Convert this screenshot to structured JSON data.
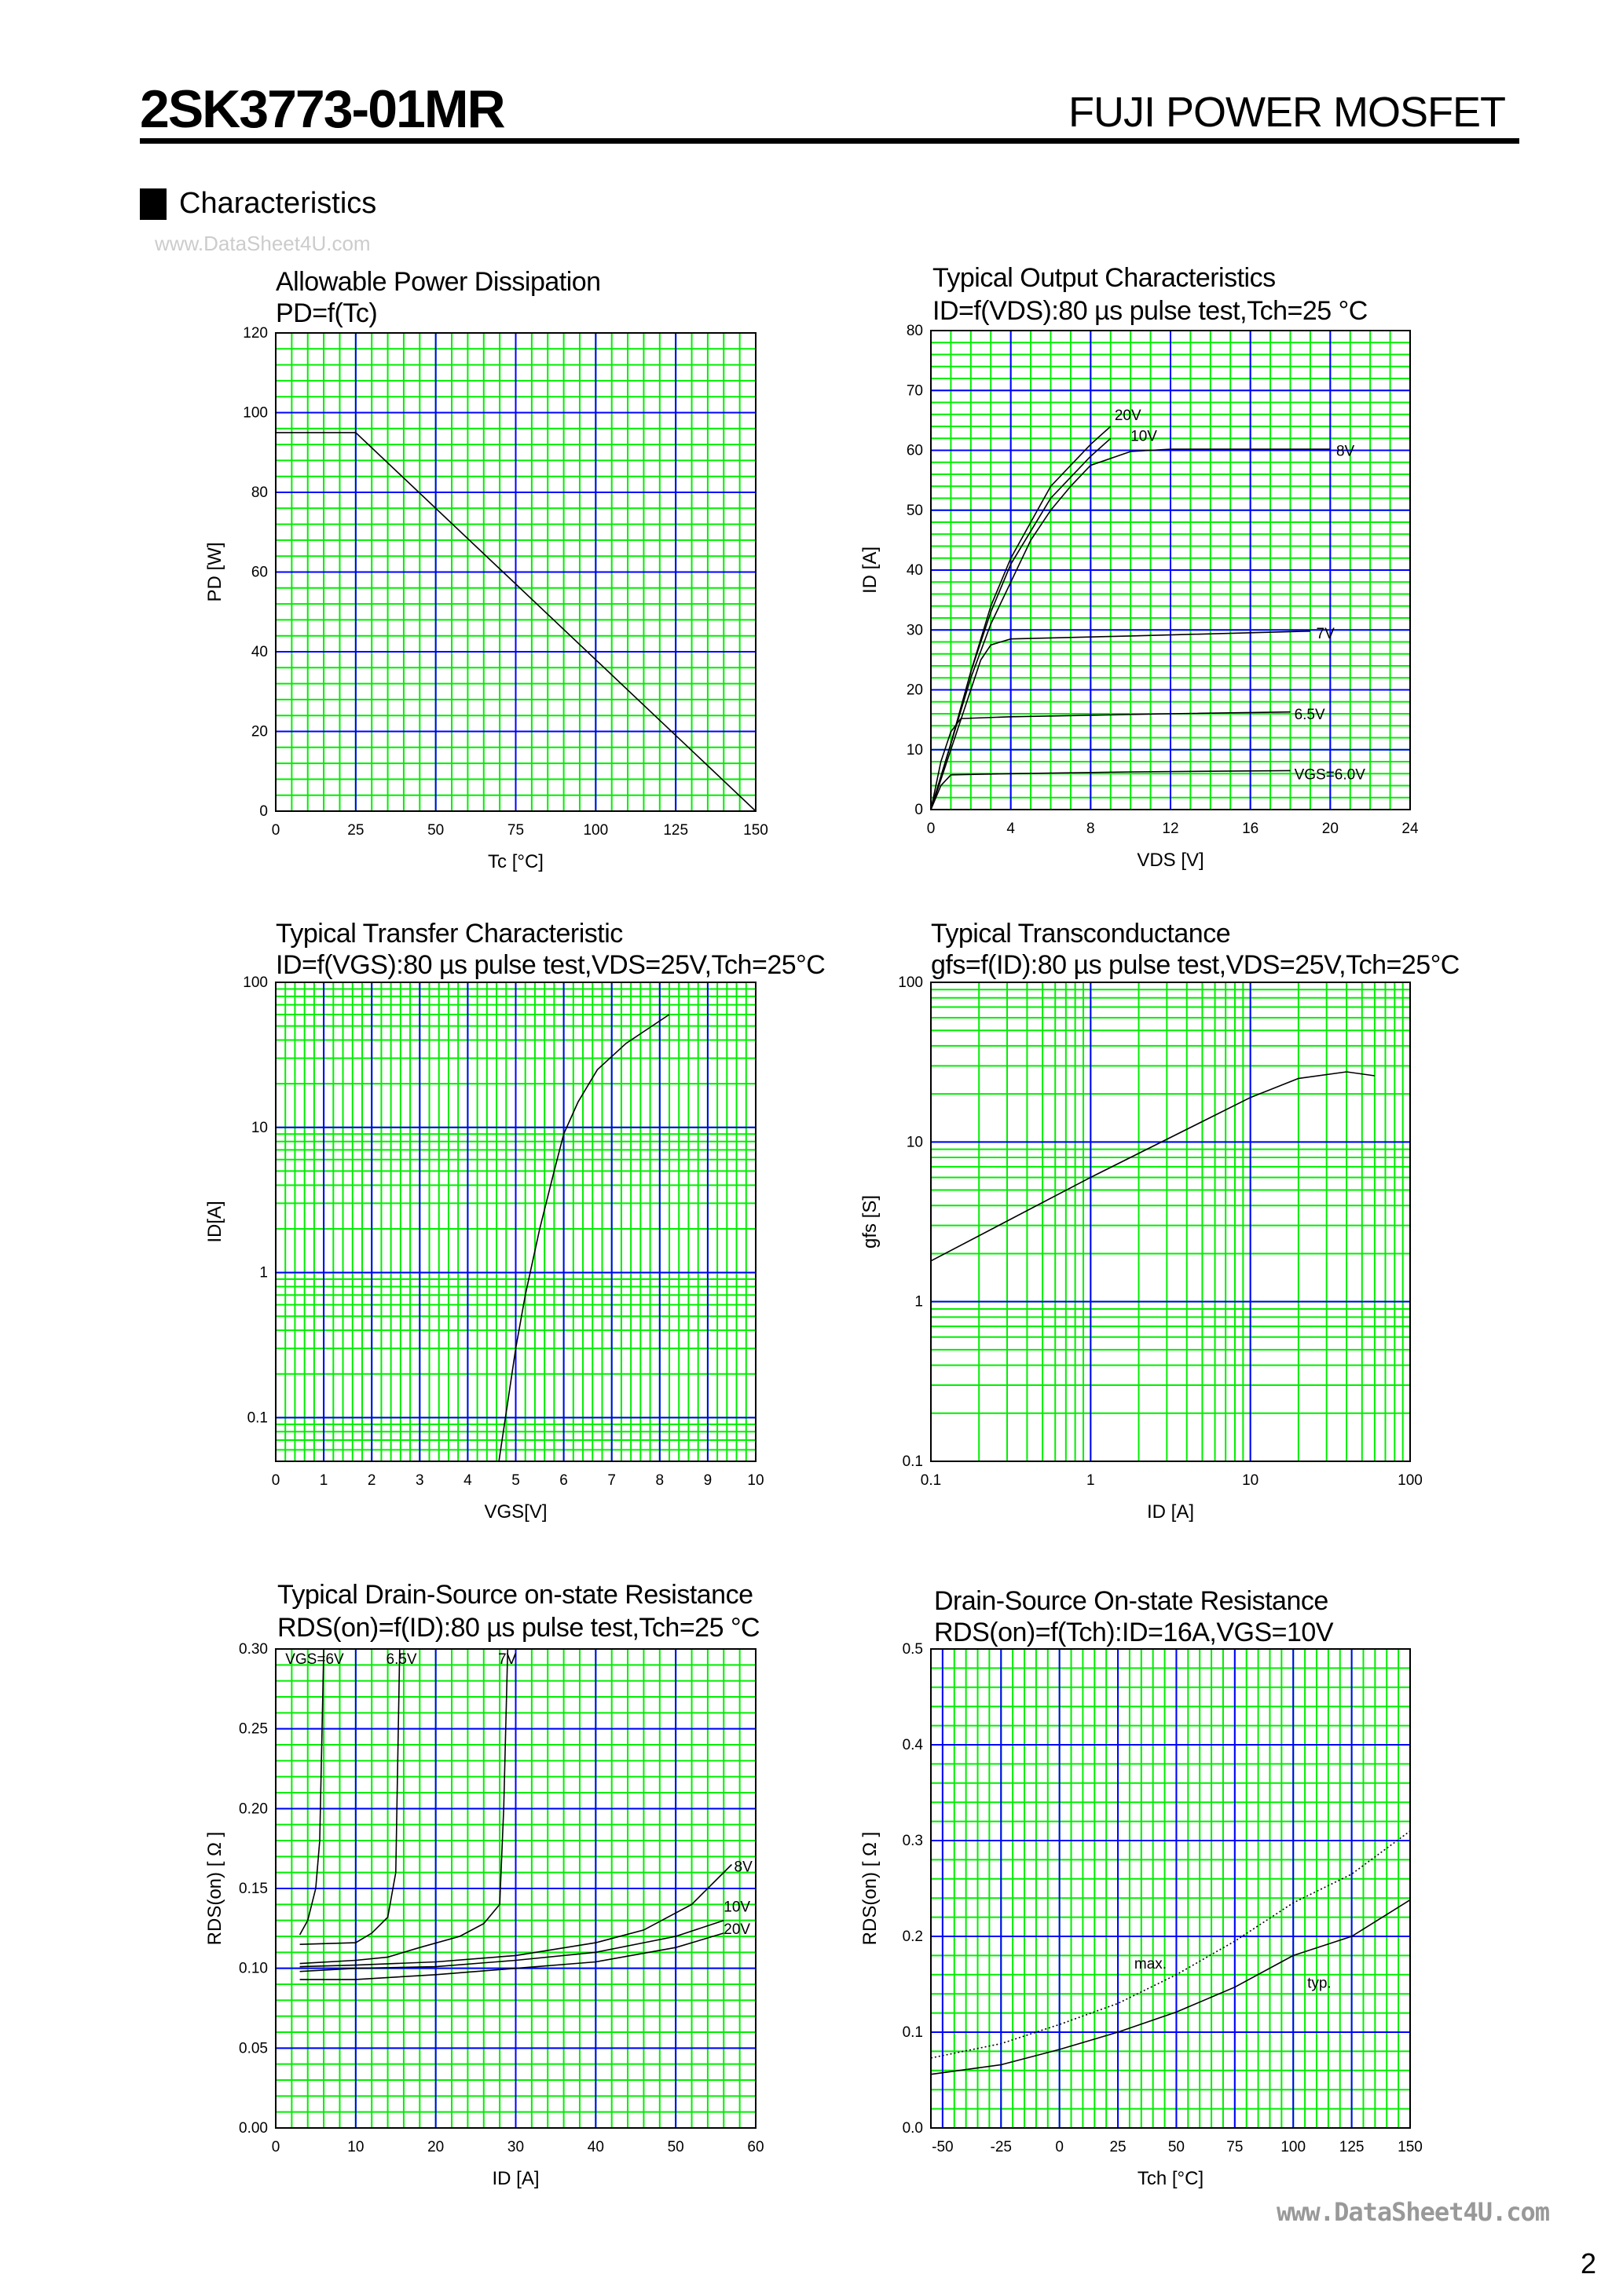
{
  "header": {
    "part_number": "2SK3773-01MR",
    "maker": "FUJI POWER MOSFET",
    "section": "Characteristics",
    "watermark_top": "www.DataSheet4U.com",
    "watermark_bottom": "www.DataSheet4U.com",
    "page_number": "2"
  },
  "colors": {
    "minor_grid": "#00ee00",
    "major_grid": "#0000ff",
    "curve": "#000000"
  },
  "chart_data": [
    {
      "type": "line",
      "title": "Allowable Power Dissipation",
      "subtitle": "PD=f(Tc)",
      "xlabel": "Tc [°C]",
      "ylabel": "PD [W]",
      "xscale": "linear",
      "yscale": "linear",
      "xlim": [
        0,
        150
      ],
      "ylim": [
        0,
        120
      ],
      "xticks": [
        0,
        25,
        50,
        75,
        100,
        125,
        150
      ],
      "yticks": [
        0,
        20,
        40,
        60,
        80,
        100,
        120
      ],
      "xminor": 5,
      "yminor": 4,
      "grid": true,
      "series": [
        {
          "x": [
            0,
            25,
            150
          ],
          "y": [
            95,
            95,
            0
          ]
        }
      ],
      "annotations": []
    },
    {
      "type": "line",
      "title": "Typical Output Characteristics",
      "subtitle": "ID=f(VDS):80 µs pulse test,Tch=25 °C",
      "xlabel": "VDS [V]",
      "ylabel": "ID [A]",
      "xscale": "linear",
      "yscale": "linear",
      "xlim": [
        0,
        24
      ],
      "ylim": [
        0,
        80
      ],
      "xticks": [
        0,
        4,
        8,
        12,
        16,
        20,
        24
      ],
      "yticks": [
        0,
        10,
        20,
        30,
        40,
        50,
        60,
        70,
        80
      ],
      "xminor": 1,
      "yminor": 2,
      "grid": true,
      "series": [
        {
          "name": "20V",
          "x": [
            0,
            1,
            2,
            3,
            4,
            6,
            8,
            9
          ],
          "y": [
            0,
            11,
            23,
            34,
            42,
            54,
            61,
            64
          ]
        },
        {
          "name": "10V",
          "x": [
            0,
            1,
            2,
            3,
            4,
            6,
            8,
            9
          ],
          "y": [
            0,
            11,
            23,
            33,
            41,
            52,
            59,
            62
          ]
        },
        {
          "name": "8V",
          "x": [
            0,
            1,
            2,
            3,
            4,
            5,
            6,
            7,
            8,
            10,
            12,
            20
          ],
          "y": [
            0,
            11,
            22,
            31,
            38,
            45,
            50,
            54,
            57.5,
            59.8,
            60.2,
            60.2
          ]
        },
        {
          "name": "7V",
          "x": [
            0,
            1,
            2,
            2.5,
            3,
            4,
            10,
            19
          ],
          "y": [
            0,
            10,
            20,
            25,
            27.5,
            28.5,
            29,
            29.8
          ]
        },
        {
          "name": "6.5V",
          "x": [
            0,
            0.5,
            1,
            1.5,
            4,
            12,
            18
          ],
          "y": [
            0,
            8,
            13,
            15.2,
            15.5,
            16,
            16.3
          ]
        },
        {
          "name": "VGS=6.0V",
          "x": [
            0,
            0.5,
            1,
            4,
            10,
            18
          ],
          "y": [
            0,
            4,
            5.8,
            6,
            6.3,
            6.5
          ]
        }
      ],
      "annotations": [
        {
          "text": "20V",
          "x": 9.2,
          "y": 66
        },
        {
          "text": "10V",
          "x": 10,
          "y": 62.5
        },
        {
          "text": "8V",
          "x": 20.3,
          "y": 60
        },
        {
          "text": "7V",
          "x": 19.3,
          "y": 29.5
        },
        {
          "text": "6.5V",
          "x": 18.2,
          "y": 16
        },
        {
          "text": "VGS=6.0V",
          "x": 18.2,
          "y": 6
        }
      ]
    },
    {
      "type": "line",
      "title": "Typical Transfer Characteristic",
      "subtitle": "ID=f(VGS):80 µs pulse test,VDS=25V,Tch=25°C",
      "xlabel": "VGS[V]",
      "ylabel": "ID[A]",
      "xscale": "linear",
      "yscale": "log",
      "xlim": [
        0,
        10
      ],
      "ylim": [
        0.05,
        100
      ],
      "xticks": [
        0,
        1,
        2,
        3,
        4,
        5,
        6,
        7,
        8,
        9,
        10
      ],
      "yticks": [
        0.1,
        1,
        10,
        100
      ],
      "xminor": 0.2,
      "grid": true,
      "series": [
        {
          "x": [
            4.65,
            5,
            5.2,
            5.5,
            5.8,
            6,
            6.3,
            6.7,
            7.3,
            8.2
          ],
          "y": [
            0.05,
            0.3,
            0.7,
            2,
            5,
            9,
            15,
            25,
            38,
            60
          ]
        }
      ],
      "annotations": []
    },
    {
      "type": "line",
      "title": "Typical Transconductance",
      "subtitle": "gfs=f(ID):80 µs pulse test,VDS=25V,Tch=25°C",
      "xlabel": "ID [A]",
      "ylabel": "gfs [S]",
      "xscale": "log",
      "yscale": "log",
      "xlim": [
        0.1,
        100
      ],
      "ylim": [
        0.1,
        100
      ],
      "xticks": [
        0.1,
        1,
        10,
        100
      ],
      "yticks": [
        0.1,
        1,
        10,
        100
      ],
      "grid": true,
      "series": [
        {
          "x": [
            0.1,
            1,
            10,
            20,
            40,
            60
          ],
          "y": [
            1.8,
            6,
            19,
            25,
            27.5,
            26
          ]
        }
      ],
      "annotations": []
    },
    {
      "type": "line",
      "title": "Typical Drain-Source on-state Resistance",
      "subtitle": "RDS(on)=f(ID):80  µs pulse test,Tch=25  °C",
      "xlabel": "ID [A]",
      "ylabel": "RDS(on) [ Ω ]",
      "xscale": "linear",
      "yscale": "linear",
      "xlim": [
        0,
        60
      ],
      "ylim": [
        0,
        0.3
      ],
      "xticks": [
        0,
        10,
        20,
        30,
        40,
        50,
        60
      ],
      "yticks": [
        0.0,
        0.05,
        0.1,
        0.15,
        0.2,
        0.25,
        0.3
      ],
      "ytick_decimals": 2,
      "xminor": 2,
      "yminor": 0.01,
      "grid": true,
      "series": [
        {
          "name": "VGS=6V",
          "x": [
            3,
            4,
            5,
            5.5,
            6
          ],
          "y": [
            0.121,
            0.13,
            0.15,
            0.18,
            0.3
          ]
        },
        {
          "name": "6.5V",
          "x": [
            3,
            10,
            12,
            14,
            15,
            15.5
          ],
          "y": [
            0.115,
            0.116,
            0.122,
            0.132,
            0.16,
            0.3
          ]
        },
        {
          "name": "7V",
          "x": [
            3,
            10,
            14,
            18,
            23,
            26,
            28,
            28.5,
            29
          ],
          "y": [
            0.103,
            0.105,
            0.107,
            0.113,
            0.12,
            0.128,
            0.14,
            0.2,
            0.3
          ]
        },
        {
          "name": "8V",
          "x": [
            3,
            10,
            20,
            30,
            40,
            46,
            52,
            57
          ],
          "y": [
            0.101,
            0.102,
            0.104,
            0.108,
            0.116,
            0.124,
            0.14,
            0.165
          ]
        },
        {
          "name": "10V",
          "x": [
            3,
            10,
            20,
            30,
            40,
            50,
            56
          ],
          "y": [
            0.098,
            0.1,
            0.101,
            0.105,
            0.11,
            0.12,
            0.13
          ]
        },
        {
          "name": "20V",
          "x": [
            3,
            10,
            20,
            30,
            40,
            50,
            56
          ],
          "y": [
            0.093,
            0.093,
            0.096,
            0.1,
            0.104,
            0.113,
            0.122
          ]
        }
      ],
      "annotations": [
        {
          "text": "VGS=6V",
          "x": 1.2,
          "y": 0.294
        },
        {
          "text": "6.5V",
          "x": 13.8,
          "y": 0.294
        },
        {
          "text": "7V",
          "x": 27.8,
          "y": 0.294
        },
        {
          "text": "8V",
          "x": 57.3,
          "y": 0.164
        },
        {
          "text": "10V",
          "x": 56,
          "y": 0.139
        },
        {
          "text": "20V",
          "x": 56,
          "y": 0.125
        }
      ]
    },
    {
      "type": "line",
      "title": "Drain-Source On-state Resistance",
      "subtitle": "RDS(on)=f(Tch):ID=16A,VGS=10V",
      "xlabel": "Tch [°C]",
      "ylabel": "RDS(on) [ Ω ]",
      "xscale": "linear",
      "yscale": "linear",
      "xlim": [
        -55,
        150
      ],
      "ylim": [
        0,
        0.5
      ],
      "xticks": [
        -50,
        -25,
        0,
        25,
        50,
        75,
        100,
        125,
        150
      ],
      "yticks": [
        0.0,
        0.1,
        0.2,
        0.3,
        0.4,
        0.5
      ],
      "ytick_decimals": 1,
      "xminor": 5,
      "yminor": 0.02,
      "grid": true,
      "series": [
        {
          "name": "max.",
          "dashed": true,
          "x": [
            -55,
            -25,
            0,
            25,
            50,
            75,
            100,
            125,
            150
          ],
          "y": [
            0.073,
            0.088,
            0.108,
            0.13,
            0.16,
            0.195,
            0.235,
            0.265,
            0.31
          ]
        },
        {
          "name": "typ.",
          "x": [
            -55,
            -25,
            0,
            25,
            50,
            75,
            100,
            125,
            150
          ],
          "y": [
            0.056,
            0.066,
            0.082,
            0.1,
            0.121,
            0.147,
            0.18,
            0.2,
            0.238
          ]
        }
      ],
      "annotations": [
        {
          "text": "max.",
          "x": 32,
          "y": 0.172
        },
        {
          "text": "typ.",
          "x": 106,
          "y": 0.152
        }
      ]
    }
  ]
}
